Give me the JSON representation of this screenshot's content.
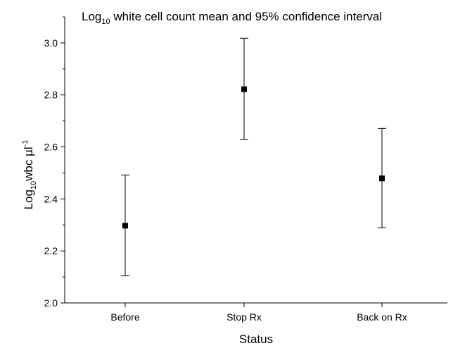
{
  "chart_data": {
    "type": "scatter",
    "title_main": "Log",
    "title_sub": "10",
    "title_rest": " white cell count mean and 95% confidence interval",
    "ylabel_main": "Log",
    "ylabel_sub": "10",
    "ylabel_mid": "wbc µl",
    "ylabel_sup": "-1",
    "xlabel": "Status",
    "categories": [
      "Before",
      "Stop Rx",
      "Back on Rx"
    ],
    "series": [
      {
        "values": [
          2.297,
          2.822,
          2.479
        ],
        "ci_lower": [
          2.104,
          2.628,
          2.289
        ],
        "ci_upper": [
          2.492,
          3.018,
          2.671
        ]
      }
    ],
    "ylim": [
      2.0,
      3.1
    ],
    "yticks": [
      {
        "value": 2.0,
        "label": "2.0"
      },
      {
        "value": 2.2,
        "label": "2.2"
      },
      {
        "value": 2.4,
        "label": "2.4"
      },
      {
        "value": 2.6,
        "label": "2.6"
      },
      {
        "value": 2.8,
        "label": "2.8"
      },
      {
        "value": 3.0,
        "label": "3.0"
      }
    ],
    "yminor_step": 0.1,
    "grid": false,
    "legend": "none",
    "color": "#000000"
  }
}
